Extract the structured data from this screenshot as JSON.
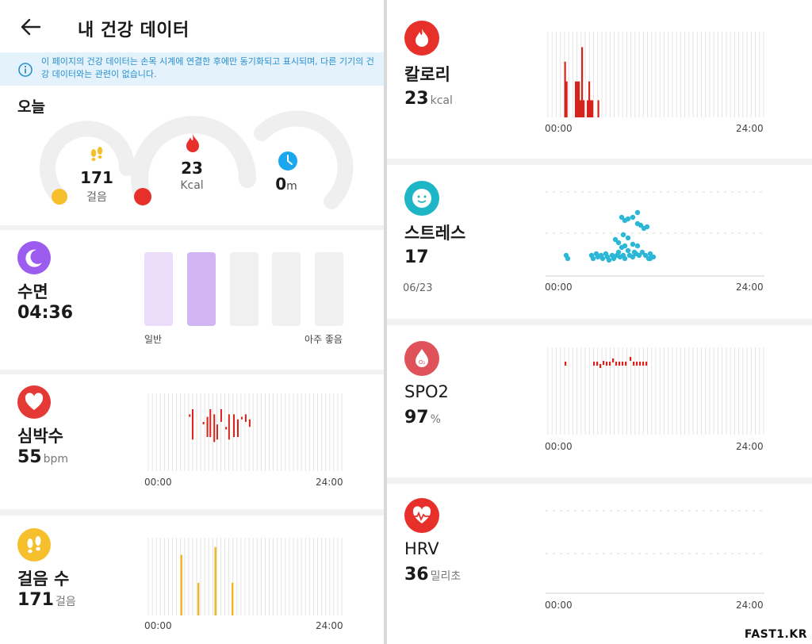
{
  "header": {
    "title": "내 건강 데이터"
  },
  "notice": {
    "text": "이 페이지의 건강 데이터는 손목 시계에 연결한 후에만 동기화되고 표시되며, 다른 기기의 건강 데이터와는 관련이 없습니다."
  },
  "today": {
    "label": "오늘",
    "steps": {
      "value": "171",
      "unit": "걸음",
      "level": 0.05
    },
    "calories": {
      "value": "23",
      "unit": "Kcal",
      "level": 0.05
    },
    "activity": {
      "value": "0",
      "unit": "m",
      "level": 0.0
    }
  },
  "sleep": {
    "title": "수면",
    "value": "04:36",
    "bars": [
      {
        "state": "filled-light"
      },
      {
        "state": "filled"
      },
      {
        "state": "empty"
      },
      {
        "state": "empty"
      },
      {
        "state": "empty"
      }
    ],
    "scale_low": "일반",
    "scale_high": "아주 좋음"
  },
  "heart": {
    "title": "심박수",
    "value": "55",
    "unit": "bpm",
    "x_start": "00:00",
    "x_end": "24:00"
  },
  "steps": {
    "title": "걸음 수",
    "value": "171",
    "unit": "걸음",
    "x_start": "00:00",
    "x_end": "24:00"
  },
  "calories": {
    "title": "칼로리",
    "value": "23",
    "unit": "kcal",
    "x_start": "00:00",
    "x_end": "24:00"
  },
  "stress": {
    "title": "스트레스",
    "value": "17",
    "date": "06/23",
    "x_start": "00:00",
    "x_end": "24:00"
  },
  "spo2": {
    "title": "SPO2",
    "value": "97",
    "unit": "%",
    "x_start": "00:00",
    "x_end": "24:00",
    "icon_text": "O₂"
  },
  "hrv": {
    "title": "HRV",
    "value": "36",
    "unit": "밀리초",
    "x_start": "00:00",
    "x_end": "24:00"
  },
  "watermark": "FAST1.KR",
  "colors": {
    "red": "#e8302a",
    "yellow": "#f6c02d",
    "blue": "#1aa7f0",
    "purple": "#9c5cf0",
    "teal": "#1eb6c6",
    "heart_red": "#e53935",
    "spo2": "#e0525a",
    "bar_red": "#d6241c",
    "gauge_track": "#ededed",
    "stress_dot": "#2bb8d8"
  },
  "chart_data": [
    {
      "type": "bar",
      "name": "heart",
      "x_range": [
        0,
        24
      ],
      "values": [
        [
          2.6,
          0.1,
          0.15
        ],
        [
          2.9,
          0.0,
          0.6
        ],
        [
          4.0,
          0.25,
          0.3
        ],
        [
          4.4,
          0.15,
          0.55
        ],
        [
          4.7,
          0.0,
          0.55
        ],
        [
          5.1,
          0.1,
          0.65
        ],
        [
          5.4,
          0.3,
          0.6
        ],
        [
          5.8,
          0.0,
          0.25
        ],
        [
          6.3,
          0.35,
          0.4
        ],
        [
          6.6,
          0.1,
          0.6
        ],
        [
          7.1,
          0.1,
          0.55
        ],
        [
          7.5,
          0.2,
          0.55
        ],
        [
          7.9,
          0.15,
          0.2
        ],
        [
          8.3,
          0.1,
          0.25
        ],
        [
          8.7,
          0.2,
          0.35
        ]
      ]
    },
    {
      "type": "bar",
      "name": "steps",
      "x_range": [
        0,
        24
      ],
      "values": [
        [
          2.5,
          0.78
        ],
        [
          5.0,
          0.42
        ],
        [
          7.5,
          0.88
        ],
        [
          10.0,
          0.42
        ]
      ]
    },
    {
      "type": "bar",
      "name": "calories",
      "x_range": [
        0,
        24
      ],
      "values": [
        [
          2.3,
          0.65
        ],
        [
          2.7,
          0.42
        ],
        [
          5.0,
          0.42
        ],
        [
          5.4,
          0.42
        ],
        [
          5.8,
          0.42
        ],
        [
          6.2,
          0.2
        ],
        [
          6.6,
          0.82
        ],
        [
          7.0,
          0.2
        ],
        [
          8.0,
          0.2
        ],
        [
          8.4,
          0.42
        ],
        [
          8.8,
          0.2
        ],
        [
          9.2,
          0.2
        ],
        [
          10.7,
          0.2
        ]
      ]
    },
    {
      "type": "scatter",
      "name": "stress",
      "x_range": [
        0,
        24
      ],
      "y_range": [
        0,
        100
      ]
    },
    {
      "type": "bar",
      "name": "spo2",
      "x_range": [
        0,
        24
      ]
    }
  ]
}
